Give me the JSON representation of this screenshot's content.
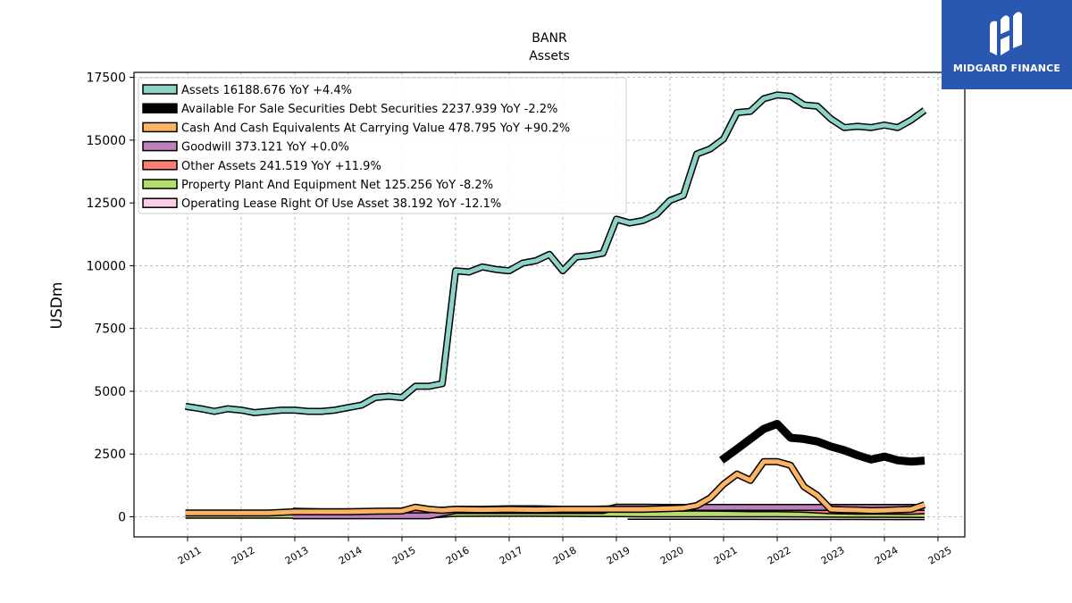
{
  "chart_data": {
    "type": "line",
    "title": "BANR",
    "subtitle": "Assets",
    "ylabel": "USDm",
    "ylim": [
      -800,
      17500
    ],
    "xlim": [
      2010.0,
      2025.5
    ],
    "grid": true,
    "legend_position": "top-left",
    "yticks": [
      "0",
      "2500",
      "5000",
      "7500",
      "10000",
      "12500",
      "15000",
      "17500"
    ],
    "xticks": [
      "2011",
      "2012",
      "2013",
      "2014",
      "2015",
      "2016",
      "2017",
      "2018",
      "2019",
      "2020",
      "2021",
      "2022",
      "2023",
      "2024",
      "2025"
    ],
    "series": [
      {
        "name": "Assets",
        "legend": "Assets  16188.676 YoY +4.4%",
        "color": "#8dd3c7",
        "width": 5,
        "x": [
          2010.96,
          2011.25,
          2011.5,
          2011.75,
          2012.0,
          2012.25,
          2012.5,
          2012.75,
          2013.0,
          2013.25,
          2013.5,
          2013.75,
          2014.0,
          2014.25,
          2014.5,
          2014.75,
          2015.0,
          2015.25,
          2015.5,
          2015.75,
          2016.0,
          2016.25,
          2016.5,
          2016.75,
          2017.0,
          2017.25,
          2017.5,
          2017.75,
          2018.0,
          2018.25,
          2018.5,
          2018.75,
          2019.0,
          2019.25,
          2019.5,
          2019.75,
          2020.0,
          2020.25,
          2020.5,
          2020.75,
          2021.0,
          2021.25,
          2021.5,
          2021.75,
          2022.0,
          2022.25,
          2022.5,
          2022.75,
          2023.0,
          2023.25,
          2023.5,
          2023.75,
          2024.0,
          2024.25,
          2024.5,
          2024.75
        ],
        "y": [
          4400,
          4300,
          4200,
          4300,
          4250,
          4150,
          4200,
          4250,
          4250,
          4200,
          4200,
          4250,
          4350,
          4450,
          4750,
          4800,
          4750,
          5200,
          5200,
          5300,
          9800,
          9750,
          9950,
          9850,
          9800,
          10100,
          10200,
          10450,
          9800,
          10350,
          10400,
          10500,
          11850,
          11700,
          11800,
          12050,
          12600,
          12800,
          14450,
          14650,
          15050,
          16100,
          16150,
          16650,
          16800,
          16750,
          16400,
          16350,
          15850,
          15500,
          15550,
          15500,
          15600,
          15500,
          15800,
          16189
        ]
      },
      {
        "name": "Available For Sale Securities Debt Securities",
        "legend": "Available For Sale Securities Debt Securities  2237.939 YoY -2.2%",
        "color": "#000000",
        "width": 9,
        "x": [
          2020.96,
          2021.25,
          2021.5,
          2021.75,
          2022.0,
          2022.25,
          2022.5,
          2022.75,
          2023.0,
          2023.25,
          2023.5,
          2023.75,
          2024.0,
          2024.25,
          2024.5,
          2024.75
        ],
        "y": [
          2250,
          2700,
          3100,
          3500,
          3700,
          3150,
          3100,
          3000,
          2800,
          2650,
          2450,
          2280,
          2400,
          2250,
          2200,
          2238
        ]
      },
      {
        "name": "Cash And Cash Equivalents At Carrying Value",
        "legend": "Cash And Cash Equivalents At Carrying Value  478.795 YoY +90.2%",
        "color": "#fdb462",
        "width": 5,
        "x": [
          2010.96,
          2011.5,
          2012.0,
          2012.5,
          2013.0,
          2013.5,
          2014.0,
          2014.5,
          2015.0,
          2015.25,
          2015.5,
          2015.75,
          2016.0,
          2016.5,
          2017.0,
          2017.5,
          2018.0,
          2018.5,
          2019.0,
          2019.5,
          2020.0,
          2020.25,
          2020.5,
          2020.75,
          2021.0,
          2021.25,
          2021.5,
          2021.75,
          2022.0,
          2022.25,
          2022.5,
          2022.75,
          2023.0,
          2023.25,
          2023.5,
          2023.75,
          2024.0,
          2024.25,
          2024.5,
          2024.75
        ],
        "y": [
          150,
          150,
          150,
          150,
          200,
          200,
          200,
          220,
          230,
          380,
          300,
          260,
          300,
          280,
          300,
          280,
          300,
          300,
          300,
          300,
          330,
          350,
          450,
          750,
          1300,
          1700,
          1450,
          2200,
          2200,
          2050,
          1200,
          850,
          300,
          280,
          270,
          250,
          260,
          280,
          300,
          479
        ]
      },
      {
        "name": "Goodwill",
        "legend": "Goodwill  373.121 YoY +0.0%",
        "color": "#bc80bd",
        "width": 5,
        "x": [
          2012.96,
          2013.5,
          2014.0,
          2014.5,
          2015.0,
          2015.5,
          2016.0,
          2016.5,
          2017.0,
          2017.5,
          2018.0,
          2018.5,
          2018.75,
          2019.0,
          2019.5,
          2020.0,
          2020.5,
          2021.0,
          2021.5,
          2022.0,
          2022.5,
          2023.0,
          2023.5,
          2024.0,
          2024.5,
          2024.75
        ],
        "y": [
          40,
          40,
          40,
          40,
          40,
          40,
          250,
          250,
          250,
          250,
          250,
          250,
          250,
          380,
          380,
          373,
          373,
          373,
          373,
          373,
          373,
          373,
          373,
          373,
          373,
          373
        ]
      },
      {
        "name": "Other Assets",
        "legend": "Other Assets  241.519 YoY +11.9%",
        "color": "#fb8072",
        "width": 5,
        "x": [
          2012.96,
          2013.5,
          2014.0,
          2014.5,
          2015.0,
          2015.5,
          2016.0,
          2016.5,
          2017.0,
          2017.5,
          2018.0,
          2018.5,
          2019.0,
          2019.5,
          2020.0,
          2020.5,
          2021.0,
          2021.5,
          2022.0,
          2022.5,
          2023.0,
          2023.5,
          2024.0,
          2024.5,
          2024.75
        ],
        "y": [
          220,
          200,
          200,
          210,
          220,
          220,
          300,
          300,
          320,
          320,
          300,
          300,
          320,
          330,
          340,
          350,
          340,
          320,
          320,
          300,
          240,
          220,
          220,
          216,
          242
        ]
      },
      {
        "name": "Property Plant And Equipment Net",
        "legend": "Property Plant And Equipment Net  125.256 YoY -8.2%",
        "color": "#b3de69",
        "width": 7,
        "x": [
          2010.96,
          2011.5,
          2012.0,
          2012.5,
          2013.0,
          2013.5,
          2014.0,
          2014.5,
          2015.0,
          2015.5,
          2016.0,
          2016.5,
          2017.0,
          2017.5,
          2018.0,
          2018.5,
          2019.0,
          2019.5,
          2020.0,
          2020.5,
          2021.0,
          2021.5,
          2022.0,
          2022.5,
          2023.0,
          2023.5,
          2024.0,
          2024.5,
          2024.75
        ],
        "y": [
          100,
          100,
          100,
          95,
          95,
          95,
          90,
          90,
          95,
          95,
          170,
          175,
          175,
          175,
          170,
          165,
          160,
          155,
          155,
          155,
          150,
          150,
          150,
          145,
          140,
          135,
          135,
          130,
          125
        ]
      },
      {
        "name": "Operating Lease Right Of Use Asset",
        "legend": "Operating Lease Right Of Use Asset  38.192 YoY -12.1%",
        "color": "#fccde5",
        "width": 7,
        "x": [
          2019.21,
          2019.5,
          2020.0,
          2020.5,
          2021.0,
          2021.5,
          2022.0,
          2022.5,
          2023.0,
          2023.5,
          2024.0,
          2024.5,
          2024.75
        ],
        "y": [
          55,
          55,
          55,
          54,
          52,
          50,
          48,
          46,
          44,
          42,
          41,
          40,
          38
        ]
      }
    ]
  },
  "logo": {
    "brand": "MIDGARD FINANCE",
    "icon": "midgard-logo-icon",
    "background": "#2a58b0"
  }
}
